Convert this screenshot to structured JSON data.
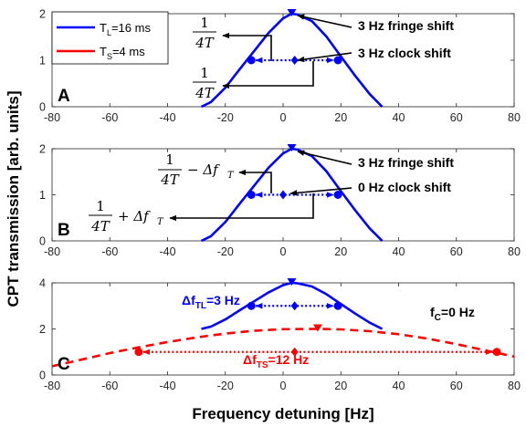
{
  "chart_data": [
    {
      "type": "line",
      "panel_label": "A",
      "xlim": [
        -80,
        80
      ],
      "ylim": [
        0,
        2
      ],
      "xticks": [
        -80,
        -60,
        -40,
        -20,
        0,
        20,
        40,
        60,
        80
      ],
      "yticks": [
        0,
        1,
        2
      ],
      "series": [
        {
          "name": "T_L=16 ms",
          "color": "#0000ff",
          "style": "solid",
          "x": [
            -28.3,
            -25,
            -20,
            -15,
            -10,
            -5,
            0,
            3,
            5,
            10,
            15,
            20,
            25,
            30,
            34.3
          ],
          "y": [
            0.0,
            0.1,
            0.41,
            0.81,
            1.2,
            1.59,
            1.9,
            2.0,
            1.98,
            1.84,
            1.51,
            1.08,
            0.66,
            0.27,
            0.0
          ]
        }
      ],
      "markers": [
        {
          "x": -11,
          "y": 1,
          "shape": "circle",
          "color": "#0000ff"
        },
        {
          "x": 4,
          "y": 1,
          "shape": "diamond",
          "color": "#0000ff"
        },
        {
          "x": 19,
          "y": 1,
          "shape": "circle",
          "color": "#0000ff"
        },
        {
          "x": 3,
          "y": 2,
          "shape": "triangle-down",
          "color": "#0000ff"
        }
      ],
      "annotations": {
        "fringe": "3 Hz fringe shift",
        "clock": "3 Hz clock shift",
        "frac_num": "1",
        "frac_den": "4T"
      }
    },
    {
      "type": "line",
      "panel_label": "B",
      "xlim": [
        -80,
        80
      ],
      "ylim": [
        0,
        2
      ],
      "xticks": [
        -80,
        -60,
        -40,
        -20,
        0,
        20,
        40,
        60,
        80
      ],
      "yticks": [
        0,
        1,
        2
      ],
      "series": [
        {
          "color": "#0000ff",
          "style": "solid",
          "x": [
            -28.3,
            -25,
            -20,
            -15,
            -10,
            -5,
            0,
            3,
            5,
            10,
            15,
            20,
            25,
            30,
            34.3
          ],
          "y": [
            0.0,
            0.1,
            0.41,
            0.81,
            1.2,
            1.59,
            1.9,
            2.0,
            1.98,
            1.84,
            1.51,
            1.08,
            0.66,
            0.27,
            0.0
          ]
        }
      ],
      "markers": [
        {
          "x": -11,
          "y": 1,
          "shape": "circle",
          "color": "#0000ff"
        },
        {
          "x": 0,
          "y": 1,
          "shape": "diamond",
          "color": "#0000ff"
        },
        {
          "x": 19,
          "y": 1,
          "shape": "circle",
          "color": "#0000ff"
        },
        {
          "x": 3,
          "y": 2,
          "shape": "triangle-down",
          "color": "#0000ff"
        }
      ],
      "annotations": {
        "fringe": "3 Hz fringe shift",
        "clock": "0 Hz clock shift",
        "frac_num": "1",
        "frac_den": "4T",
        "minus_term": "− Δf",
        "plus_term": "+ Δf",
        "sub": "T"
      }
    },
    {
      "type": "line",
      "panel_label": "C",
      "xlim": [
        -80,
        80
      ],
      "ylim": [
        0,
        4
      ],
      "xticks": [
        -80,
        -60,
        -40,
        -20,
        0,
        20,
        40,
        60,
        80
      ],
      "yticks": [
        0,
        2,
        4
      ],
      "series": [
        {
          "color": "#0000ff",
          "style": "solid",
          "x": [
            -28.3,
            -25,
            -20,
            -15,
            -10,
            -5,
            0,
            3,
            5,
            10,
            15,
            20,
            25,
            30,
            34.3
          ],
          "y": [
            2.0,
            2.1,
            2.41,
            2.81,
            3.2,
            3.59,
            3.9,
            4.0,
            3.98,
            3.84,
            3.51,
            3.08,
            2.66,
            2.27,
            2.0
          ]
        },
        {
          "color": "#ff0000",
          "style": "dashed",
          "x": [
            -80,
            -70,
            -60,
            -50,
            -40,
            -30,
            -20,
            -10,
            0,
            12,
            20,
            30,
            40,
            50,
            60,
            70,
            80
          ],
          "y": [
            0.38,
            0.66,
            0.95,
            1.2,
            1.43,
            1.63,
            1.8,
            1.92,
            1.99,
            2.0,
            1.98,
            1.9,
            1.77,
            1.58,
            1.34,
            1.07,
            0.8
          ]
        }
      ],
      "markers": [
        {
          "x": -11,
          "y": 3,
          "shape": "circle",
          "color": "#0000ff"
        },
        {
          "x": 4,
          "y": 3,
          "shape": "diamond",
          "color": "#0000ff"
        },
        {
          "x": 19,
          "y": 3,
          "shape": "circle",
          "color": "#0000ff"
        },
        {
          "x": 3,
          "y": 4,
          "shape": "triangle-down",
          "color": "#0000ff"
        },
        {
          "x": -50,
          "y": 1,
          "shape": "circle",
          "color": "#ff0000"
        },
        {
          "x": 4,
          "y": 1,
          "shape": "diamond",
          "color": "#ff0000"
        },
        {
          "x": 74,
          "y": 1,
          "shape": "circle",
          "color": "#ff0000"
        },
        {
          "x": 12,
          "y": 2,
          "shape": "triangle-down",
          "color": "#ff0000"
        }
      ],
      "annotations": {
        "dfl_main": "Δf",
        "dfl_sub": "TL",
        "dfl_tail": "=3 Hz",
        "dfs_main": "Δf",
        "dfs_sub": "TS",
        "dfs_tail": "=12 Hz",
        "fc_main": "f",
        "fc_sub": "C",
        "fc_tail": "=0 Hz"
      }
    }
  ],
  "legend": {
    "position": "top-left",
    "items": [
      {
        "main": "T",
        "sub": "L",
        "tail": "=16 ms",
        "color": "#0000ff"
      },
      {
        "main": "T",
        "sub": "S",
        "tail": "=4 ms",
        "color": "#ff0000"
      }
    ]
  },
  "ylabel": "CPT transmission [arb. units]",
  "xlabel": "Frequency detuning [Hz]"
}
